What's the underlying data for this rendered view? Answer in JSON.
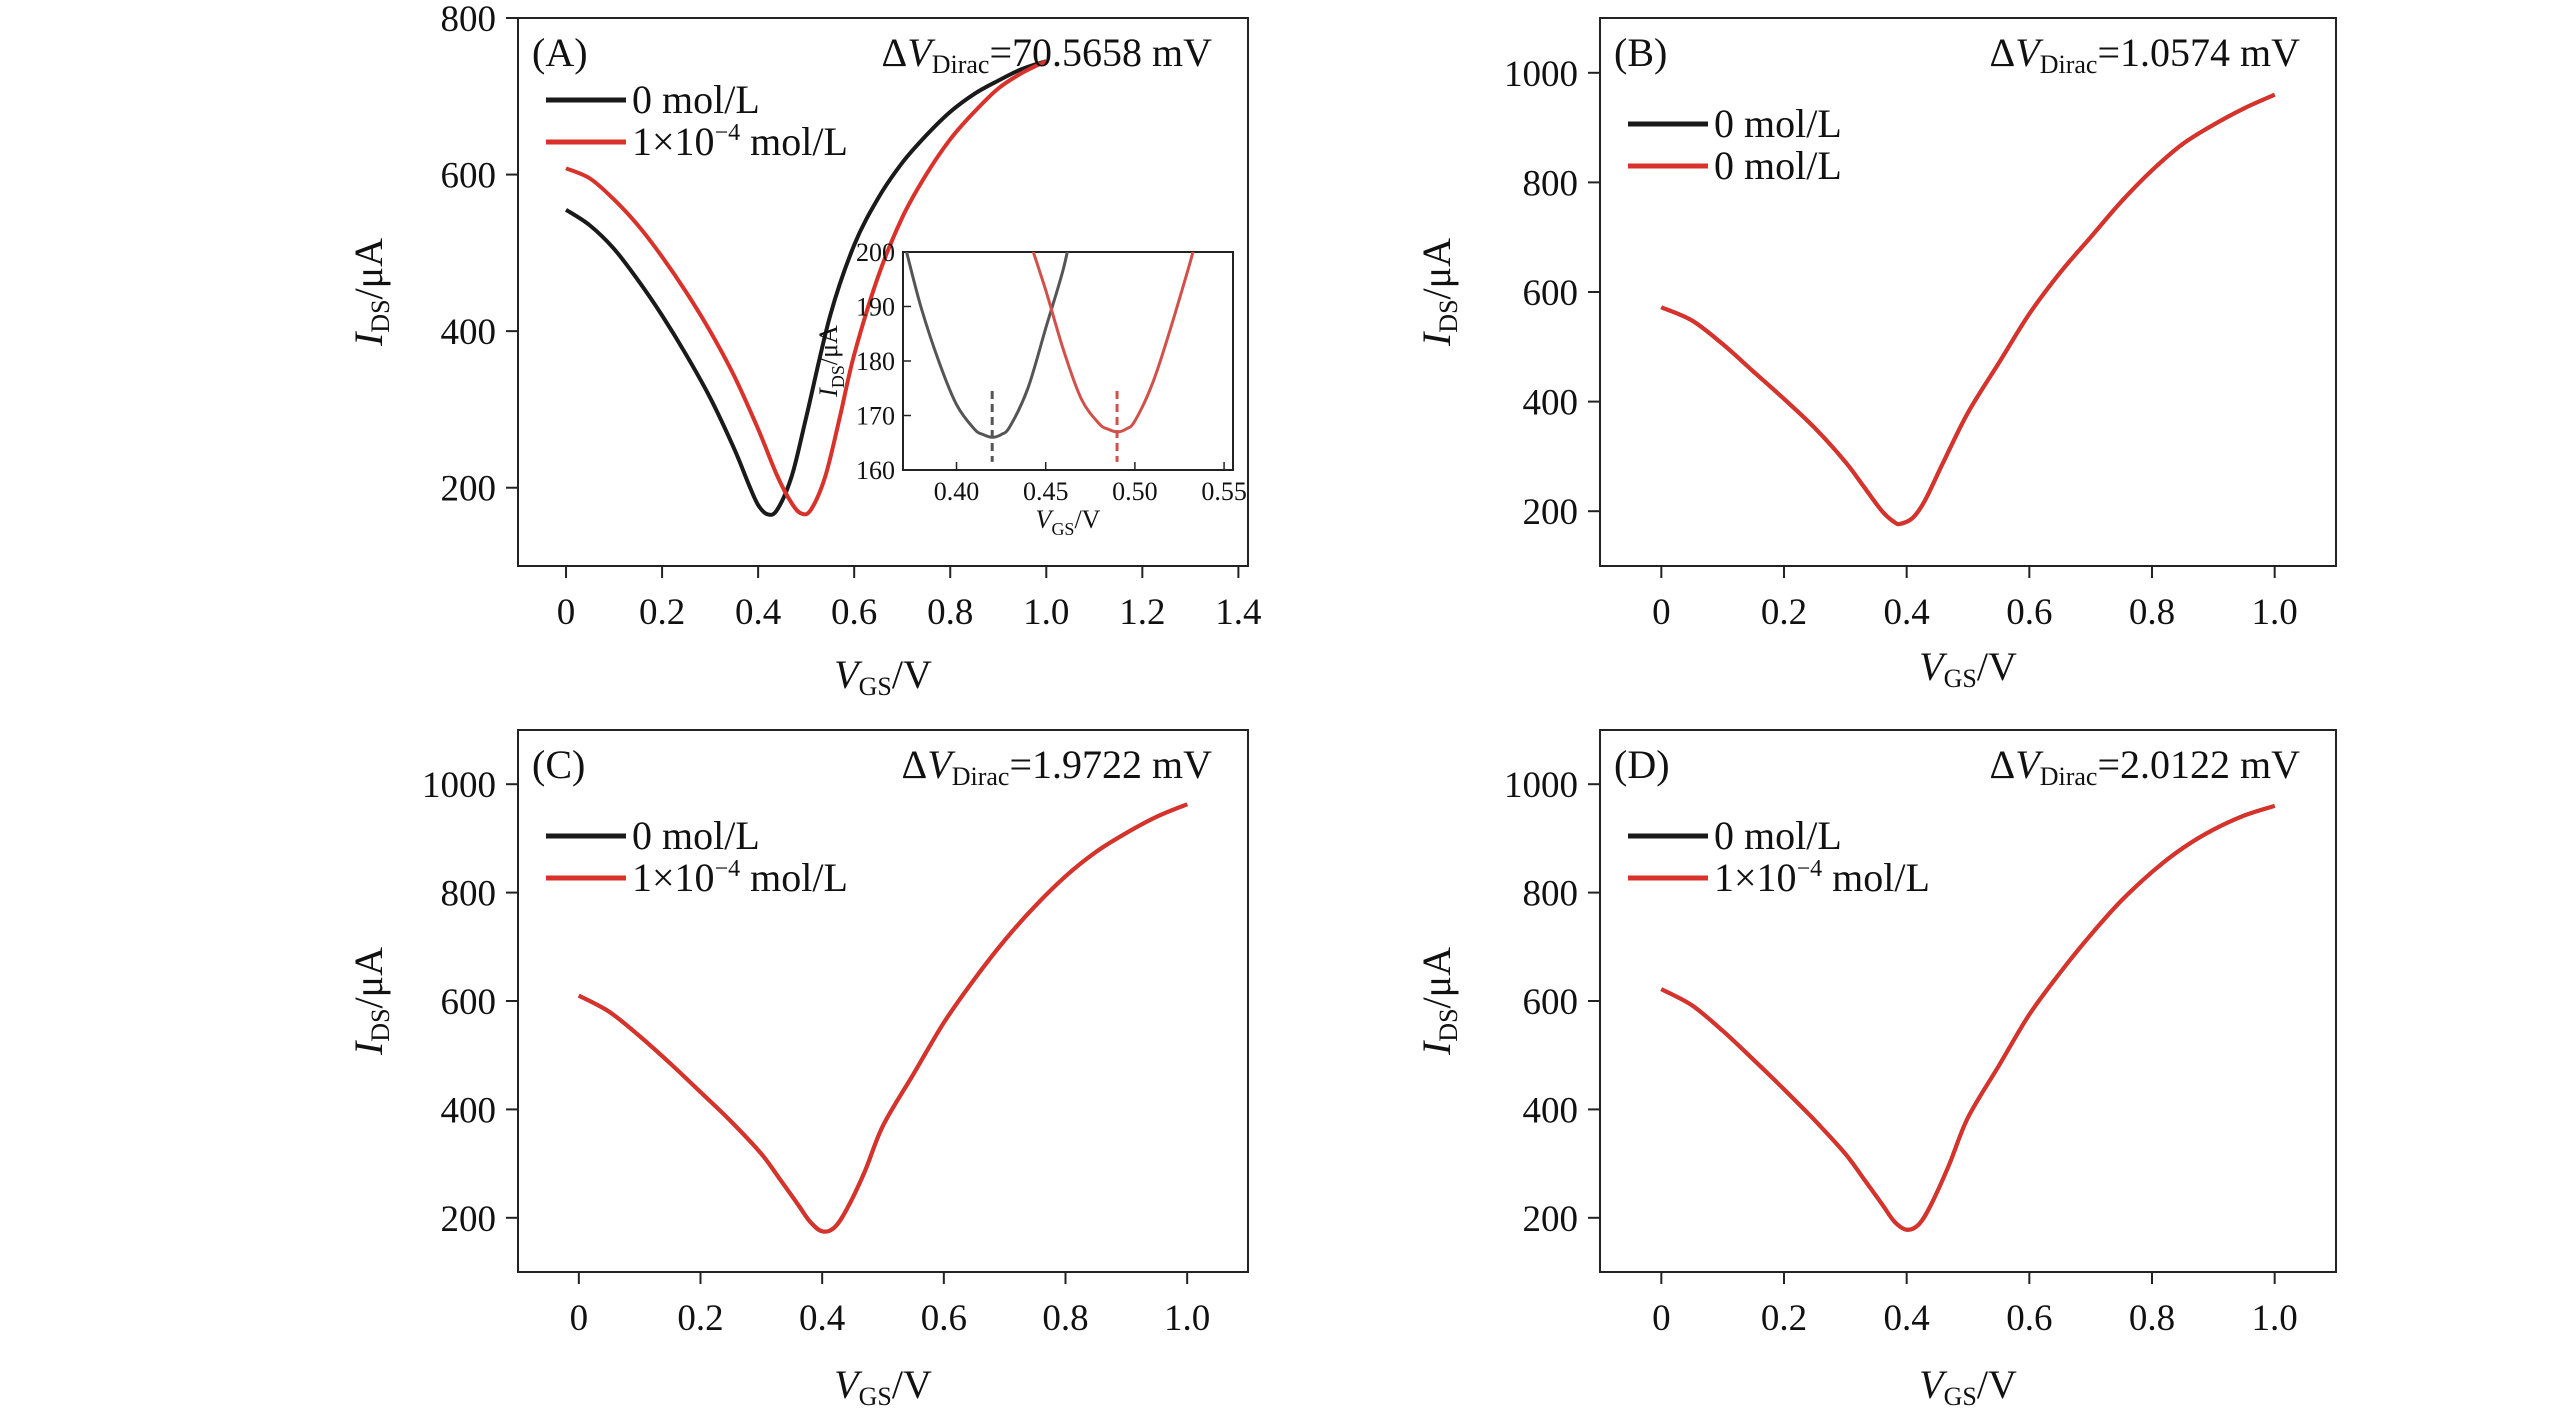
{
  "colors": {
    "black_series": "#1a1a1a",
    "red_series": "#d8322b",
    "inset_black": "#555555",
    "inset_red": "#d2504a"
  },
  "chart_data": [
    {
      "panel": "(A)",
      "type": "line",
      "annotation": {
        "delta": "Δ",
        "v": "V",
        "sub": "Dirac",
        "rest": "=70.5658 mV"
      },
      "xlabel": {
        "main": "V",
        "sub": "GS",
        "unit": "/V"
      },
      "ylabel": {
        "main": "I",
        "sub": "DS",
        "unit": "/μA"
      },
      "xlim": [
        -0.1,
        1.42
      ],
      "ylim": [
        100,
        800
      ],
      "xticks": [
        "0",
        "0.2",
        "0.4",
        "0.6",
        "0.8",
        "1.0",
        "1.2",
        "1.4"
      ],
      "xtick_values": [
        0,
        0.2,
        0.4,
        0.6,
        0.8,
        1.0,
        1.2,
        1.4
      ],
      "yticks": [
        "200",
        "400",
        "600",
        "800"
      ],
      "ytick_values": [
        200,
        400,
        600,
        800
      ],
      "legend": [
        {
          "label": "0 mol/L",
          "color": "#1a1a1a"
        },
        {
          "label_pre": "1×10",
          "label_exp": "−4",
          "label_post": " mol/L",
          "color": "#d8322b"
        }
      ],
      "series": [
        {
          "name": "0 mol/L",
          "color": "#1a1a1a",
          "x": [
            0,
            0.05,
            0.1,
            0.15,
            0.2,
            0.25,
            0.3,
            0.35,
            0.38,
            0.4,
            0.42,
            0.44,
            0.47,
            0.5,
            0.55,
            0.6,
            0.65,
            0.7,
            0.75,
            0.8,
            0.85,
            0.9,
            0.95,
            1.0
          ],
          "y": [
            555,
            535,
            505,
            465,
            420,
            370,
            315,
            250,
            205,
            178,
            166,
            172,
            215,
            290,
            420,
            510,
            570,
            615,
            650,
            680,
            703,
            720,
            735,
            745
          ]
        },
        {
          "name": "1×10⁻⁴ mol/L",
          "color": "#d8322b",
          "x": [
            0,
            0.05,
            0.1,
            0.15,
            0.2,
            0.25,
            0.3,
            0.35,
            0.4,
            0.44,
            0.47,
            0.49,
            0.51,
            0.54,
            0.57,
            0.6,
            0.65,
            0.7,
            0.75,
            0.8,
            0.85,
            0.9,
            0.95,
            1.0
          ],
          "y": [
            608,
            595,
            568,
            535,
            495,
            450,
            400,
            343,
            275,
            215,
            180,
            167,
            172,
            215,
            290,
            370,
            470,
            545,
            600,
            645,
            680,
            710,
            730,
            745
          ]
        }
      ],
      "inset": {
        "xlabel": {
          "main": "V",
          "sub": "GS",
          "unit": "/V"
        },
        "ylabel": {
          "main": "I",
          "sub": "DS",
          "unit": "/μA"
        },
        "xlim": [
          0.37,
          0.555
        ],
        "ylim": [
          160,
          200
        ],
        "xticks": [
          "0.40",
          "0.45",
          "0.50",
          "0.55"
        ],
        "xtick_values": [
          0.4,
          0.45,
          0.5,
          0.55
        ],
        "yticks": [
          "160",
          "170",
          "180",
          "190",
          "200"
        ],
        "ytick_values": [
          160,
          170,
          180,
          190,
          200
        ],
        "dirac_points": [
          0.42,
          0.49
        ],
        "series": [
          {
            "name": "0 mol/L",
            "color": "#555555",
            "x": [
              0.372,
              0.38,
              0.39,
              0.4,
              0.41,
              0.415,
              0.42,
              0.425,
              0.43,
              0.44,
              0.45,
              0.46,
              0.465
            ],
            "y": [
              200,
              190,
              180,
              172,
              167.5,
              166.5,
              166,
              166.5,
              168,
              175,
              186,
              197,
              205
            ]
          },
          {
            "name": "1×10⁻⁴ mol/L",
            "color": "#d2504a",
            "x": [
              0.44,
              0.45,
              0.46,
              0.47,
              0.48,
              0.485,
              0.49,
              0.495,
              0.5,
              0.51,
              0.52,
              0.53,
              0.535
            ],
            "y": [
              203,
              193,
              182,
              173,
              168.5,
              167.5,
              167,
              167.5,
              169,
              176,
              186,
              197,
              203
            ]
          }
        ]
      }
    },
    {
      "panel": "(B)",
      "type": "line",
      "annotation": {
        "delta": "Δ",
        "v": "V",
        "sub": "Dirac",
        "rest": "=1.0574 mV"
      },
      "xlabel": {
        "main": "V",
        "sub": "GS",
        "unit": "/V"
      },
      "ylabel": {
        "main": "I",
        "sub": "DS",
        "unit": "/μA"
      },
      "xlim": [
        -0.1,
        1.1
      ],
      "ylim": [
        100,
        1100
      ],
      "xticks": [
        "0",
        "0.2",
        "0.4",
        "0.6",
        "0.8",
        "1.0"
      ],
      "xtick_values": [
        0,
        0.2,
        0.4,
        0.6,
        0.8,
        1.0
      ],
      "yticks": [
        "200",
        "400",
        "600",
        "800",
        "1000"
      ],
      "ytick_values": [
        200,
        400,
        600,
        800,
        1000
      ],
      "legend": [
        {
          "label": "0 mol/L",
          "color": "#1a1a1a"
        },
        {
          "label": "0 mol/L",
          "color": "#d8322b"
        }
      ],
      "series": [
        {
          "name": "0 mol/L",
          "color": "#1a1a1a",
          "x": [
            0,
            0.05,
            0.1,
            0.15,
            0.2,
            0.25,
            0.3,
            0.33,
            0.36,
            0.38,
            0.39,
            0.41,
            0.43,
            0.46,
            0.5,
            0.55,
            0.6,
            0.65,
            0.7,
            0.75,
            0.8,
            0.85,
            0.9,
            0.95,
            1.0
          ],
          "y": [
            572,
            548,
            505,
            455,
            405,
            352,
            290,
            245,
            200,
            180,
            177,
            188,
            220,
            290,
            380,
            470,
            560,
            635,
            700,
            765,
            822,
            870,
            905,
            935,
            960
          ]
        },
        {
          "name": "0 mol/L",
          "color": "#d8322b",
          "x": [
            0,
            0.05,
            0.1,
            0.15,
            0.2,
            0.25,
            0.3,
            0.33,
            0.36,
            0.38,
            0.39,
            0.41,
            0.43,
            0.46,
            0.5,
            0.55,
            0.6,
            0.65,
            0.7,
            0.75,
            0.8,
            0.85,
            0.9,
            0.95,
            1.0
          ],
          "y": [
            572,
            548,
            505,
            455,
            405,
            352,
            290,
            245,
            200,
            180,
            177,
            188,
            220,
            290,
            380,
            470,
            560,
            635,
            700,
            765,
            822,
            870,
            905,
            935,
            960
          ]
        }
      ]
    },
    {
      "panel": "(C)",
      "type": "line",
      "annotation": {
        "delta": "Δ",
        "v": "V",
        "sub": "Dirac",
        "rest": "=1.9722 mV"
      },
      "xlabel": {
        "main": "V",
        "sub": "GS",
        "unit": "/V"
      },
      "ylabel": {
        "main": "I",
        "sub": "DS",
        "unit": "/μA"
      },
      "xlim": [
        -0.1,
        1.1
      ],
      "ylim": [
        100,
        1100
      ],
      "xticks": [
        "0",
        "0.2",
        "0.4",
        "0.6",
        "0.8",
        "1.0"
      ],
      "xtick_values": [
        0,
        0.2,
        0.4,
        0.6,
        0.8,
        1.0
      ],
      "yticks": [
        "200",
        "400",
        "600",
        "800",
        "1000"
      ],
      "ytick_values": [
        200,
        400,
        600,
        800,
        1000
      ],
      "legend": [
        {
          "label": "0 mol/L",
          "color": "#1a1a1a"
        },
        {
          "label_pre": "1×10",
          "label_exp": "−4",
          "label_post": " mol/L",
          "color": "#d8322b"
        }
      ],
      "series": [
        {
          "name": "0 mol/L",
          "color": "#1a1a1a",
          "x": [
            0,
            0.05,
            0.1,
            0.15,
            0.2,
            0.25,
            0.3,
            0.33,
            0.36,
            0.38,
            0.4,
            0.42,
            0.44,
            0.47,
            0.5,
            0.55,
            0.6,
            0.65,
            0.7,
            0.75,
            0.8,
            0.85,
            0.9,
            0.95,
            1.0
          ],
          "y": [
            610,
            580,
            535,
            485,
            432,
            378,
            318,
            272,
            225,
            193,
            175,
            182,
            215,
            285,
            370,
            465,
            560,
            640,
            712,
            775,
            830,
            875,
            910,
            940,
            963
          ]
        },
        {
          "name": "1×10⁻⁴ mol/L",
          "color": "#d8322b",
          "x": [
            0,
            0.05,
            0.1,
            0.15,
            0.2,
            0.25,
            0.3,
            0.33,
            0.36,
            0.38,
            0.4,
            0.42,
            0.44,
            0.47,
            0.5,
            0.55,
            0.6,
            0.65,
            0.7,
            0.75,
            0.8,
            0.85,
            0.9,
            0.95,
            1.0
          ],
          "y": [
            610,
            580,
            535,
            485,
            432,
            378,
            318,
            272,
            225,
            193,
            175,
            182,
            215,
            285,
            370,
            465,
            560,
            640,
            712,
            775,
            830,
            875,
            910,
            940,
            963
          ]
        }
      ]
    },
    {
      "panel": "(D)",
      "type": "line",
      "annotation": {
        "delta": "Δ",
        "v": "V",
        "sub": "Dirac",
        "rest": "=2.0122 mV"
      },
      "xlabel": {
        "main": "V",
        "sub": "GS",
        "unit": "/V"
      },
      "ylabel": {
        "main": "I",
        "sub": "DS",
        "unit": "/μA"
      },
      "xlim": [
        -0.1,
        1.1
      ],
      "ylim": [
        100,
        1100
      ],
      "xticks": [
        "0",
        "0.2",
        "0.4",
        "0.6",
        "0.8",
        "1.0"
      ],
      "xtick_values": [
        0,
        0.2,
        0.4,
        0.6,
        0.8,
        1.0
      ],
      "yticks": [
        "200",
        "400",
        "600",
        "800",
        "1000"
      ],
      "ytick_values": [
        200,
        400,
        600,
        800,
        1000
      ],
      "legend": [
        {
          "label": "0 mol/L",
          "color": "#1a1a1a"
        },
        {
          "label_pre": "1×10",
          "label_exp": "−4",
          "label_post": " mol/L",
          "color": "#d8322b"
        }
      ],
      "series": [
        {
          "name": "0 mol/L",
          "color": "#1a1a1a",
          "x": [
            0,
            0.05,
            0.1,
            0.15,
            0.2,
            0.25,
            0.3,
            0.33,
            0.36,
            0.38,
            0.4,
            0.42,
            0.44,
            0.47,
            0.5,
            0.55,
            0.6,
            0.65,
            0.7,
            0.75,
            0.8,
            0.85,
            0.9,
            0.95,
            1.0
          ],
          "y": [
            622,
            592,
            545,
            492,
            437,
            380,
            318,
            272,
            225,
            193,
            178,
            188,
            225,
            300,
            385,
            480,
            575,
            652,
            722,
            785,
            838,
            882,
            916,
            942,
            960
          ]
        },
        {
          "name": "1×10⁻⁴ mol/L",
          "color": "#d8322b",
          "x": [
            0,
            0.05,
            0.1,
            0.15,
            0.2,
            0.25,
            0.3,
            0.33,
            0.36,
            0.38,
            0.4,
            0.42,
            0.44,
            0.47,
            0.5,
            0.55,
            0.6,
            0.65,
            0.7,
            0.75,
            0.8,
            0.85,
            0.9,
            0.95,
            1.0
          ],
          "y": [
            622,
            592,
            545,
            492,
            437,
            380,
            318,
            272,
            225,
            193,
            178,
            188,
            225,
            300,
            385,
            480,
            575,
            652,
            722,
            785,
            838,
            882,
            916,
            942,
            960
          ]
        }
      ]
    }
  ]
}
